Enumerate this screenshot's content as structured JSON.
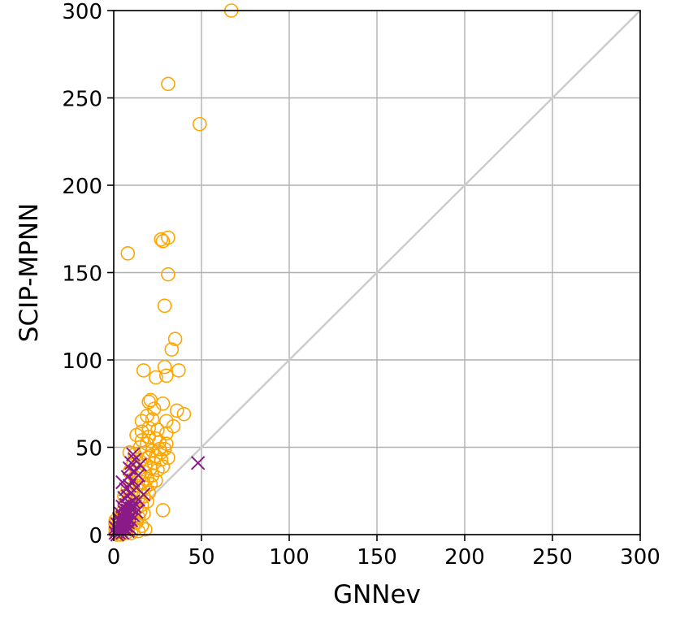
{
  "chart_data": {
    "type": "scatter",
    "title": "",
    "xlabel": "GNNev",
    "ylabel": "SCIP-MPNN",
    "xlim": [
      0,
      300
    ],
    "ylim": [
      0,
      300
    ],
    "xticks": [
      "0",
      "50",
      "100",
      "150",
      "200",
      "250",
      "300"
    ],
    "yticks": [
      "0",
      "50",
      "100",
      "150",
      "200",
      "250",
      "300"
    ],
    "grid": true,
    "diagonal": {
      "from": [
        0,
        0
      ],
      "to": [
        300,
        300
      ],
      "color": "#cccccc"
    },
    "series": [
      {
        "marker": "circle-open",
        "color": "#ffa500",
        "points": [
          [
            67,
            300
          ],
          [
            31,
            258
          ],
          [
            49,
            235
          ],
          [
            31,
            170
          ],
          [
            27,
            169
          ],
          [
            28,
            168
          ],
          [
            8,
            161
          ],
          [
            31,
            149
          ],
          [
            29,
            131
          ],
          [
            35,
            112
          ],
          [
            33,
            106
          ],
          [
            29,
            96
          ],
          [
            37,
            94
          ],
          [
            17,
            94
          ],
          [
            30,
            91
          ],
          [
            24,
            90
          ],
          [
            21,
            77
          ],
          [
            20,
            76
          ],
          [
            28,
            75
          ],
          [
            23,
            72
          ],
          [
            36,
            71
          ],
          [
            40,
            69
          ],
          [
            19,
            68
          ],
          [
            22,
            66
          ],
          [
            16,
            65
          ],
          [
            30,
            65
          ],
          [
            34,
            62
          ],
          [
            20,
            61
          ],
          [
            25,
            60
          ],
          [
            16,
            59
          ],
          [
            30,
            58
          ],
          [
            13,
            57
          ],
          [
            20,
            56
          ],
          [
            24,
            55
          ],
          [
            16,
            54
          ],
          [
            26,
            53
          ],
          [
            19,
            52
          ],
          [
            30,
            52
          ],
          [
            15,
            50
          ],
          [
            26,
            49
          ],
          [
            29,
            49
          ],
          [
            22,
            48
          ],
          [
            9,
            47
          ],
          [
            18,
            47
          ],
          [
            27,
            47
          ],
          [
            12,
            46
          ],
          [
            24,
            45
          ],
          [
            31,
            44
          ],
          [
            20,
            44
          ],
          [
            27,
            43
          ],
          [
            15,
            42
          ],
          [
            23,
            41
          ],
          [
            11,
            40
          ],
          [
            18,
            40
          ],
          [
            28,
            39
          ],
          [
            13,
            38
          ],
          [
            21,
            38
          ],
          [
            25,
            37
          ],
          [
            9,
            36
          ],
          [
            17,
            36
          ],
          [
            14,
            34
          ],
          [
            22,
            34
          ],
          [
            12,
            33
          ],
          [
            19,
            32
          ],
          [
            24,
            31
          ],
          [
            10,
            30
          ],
          [
            16,
            30
          ],
          [
            21,
            29
          ],
          [
            13,
            28
          ],
          [
            18,
            27
          ],
          [
            8,
            26
          ],
          [
            15,
            25
          ],
          [
            20,
            24
          ],
          [
            11,
            23
          ],
          [
            17,
            22
          ],
          [
            6,
            22
          ],
          [
            14,
            21
          ],
          [
            9,
            20
          ],
          [
            19,
            19
          ],
          [
            12,
            18
          ],
          [
            7,
            18
          ],
          [
            16,
            17
          ],
          [
            10,
            16
          ],
          [
            13,
            15
          ],
          [
            28,
            14
          ],
          [
            8,
            14
          ],
          [
            15,
            13
          ],
          [
            5,
            13
          ],
          [
            11,
            12
          ],
          [
            17,
            12
          ],
          [
            9,
            11
          ],
          [
            14,
            10
          ],
          [
            6,
            10
          ],
          [
            12,
            9
          ],
          [
            4,
            9
          ],
          [
            8,
            8
          ],
          [
            10,
            8
          ],
          [
            1,
            8
          ],
          [
            3,
            7
          ],
          [
            7,
            7
          ],
          [
            13,
            7
          ],
          [
            5,
            6
          ],
          [
            1,
            6
          ],
          [
            9,
            5
          ],
          [
            2,
            5
          ],
          [
            16,
            5
          ],
          [
            6,
            4
          ],
          [
            4,
            4
          ],
          [
            1,
            3
          ],
          [
            8,
            3
          ],
          [
            18,
            3
          ],
          [
            3,
            2
          ],
          [
            5,
            2
          ],
          [
            1,
            1
          ],
          [
            7,
            1
          ],
          [
            2,
            0
          ],
          [
            10,
            1
          ],
          [
            4,
            0
          ],
          [
            14,
            2
          ]
        ]
      },
      {
        "marker": "x",
        "color": "#8b1a89",
        "points": [
          [
            48,
            41
          ],
          [
            11,
            46
          ],
          [
            12,
            43
          ],
          [
            10,
            41
          ],
          [
            15,
            40
          ],
          [
            9,
            38
          ],
          [
            12,
            36
          ],
          [
            14,
            34
          ],
          [
            8,
            33
          ],
          [
            11,
            31
          ],
          [
            5,
            30
          ],
          [
            9,
            28
          ],
          [
            13,
            27
          ],
          [
            7,
            26
          ],
          [
            10,
            24
          ],
          [
            17,
            23
          ],
          [
            8,
            22
          ],
          [
            6,
            21
          ],
          [
            14,
            20
          ],
          [
            11,
            19
          ],
          [
            9,
            18
          ],
          [
            7,
            17
          ],
          [
            12,
            16
          ],
          [
            5,
            16
          ],
          [
            10,
            15
          ],
          [
            8,
            14
          ],
          [
            6,
            13
          ],
          [
            13,
            13
          ],
          [
            4,
            12
          ],
          [
            9,
            12
          ],
          [
            11,
            11
          ],
          [
            7,
            11
          ],
          [
            5,
            10
          ],
          [
            8,
            9
          ],
          [
            3,
            9
          ],
          [
            10,
            8
          ],
          [
            6,
            8
          ],
          [
            4,
            7
          ],
          [
            8,
            7
          ],
          [
            2,
            6
          ],
          [
            5,
            6
          ],
          [
            7,
            5
          ],
          [
            3,
            5
          ],
          [
            9,
            4
          ],
          [
            1,
            4
          ],
          [
            5,
            4
          ],
          [
            2,
            3
          ],
          [
            6,
            3
          ],
          [
            4,
            2
          ],
          [
            8,
            2
          ],
          [
            1,
            1
          ],
          [
            3,
            1
          ],
          [
            5,
            1
          ],
          [
            2,
            0
          ]
        ]
      }
    ]
  }
}
